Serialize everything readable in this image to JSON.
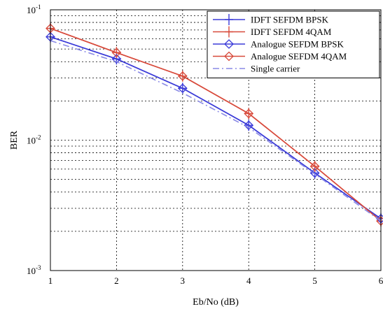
{
  "chart_data": {
    "type": "line",
    "xlabel": "Eb/No (dB)",
    "ylabel": "BER",
    "xlim": [
      1,
      6
    ],
    "ylim": [
      0.001,
      0.1
    ],
    "yscale": "log",
    "grid": true,
    "legend_position": "top-right",
    "x_ticks": [
      "1",
      "2",
      "3",
      "4",
      "5",
      "6"
    ],
    "y_ticks": [
      {
        "value": 0.1,
        "base": "10",
        "exp": "-1"
      },
      {
        "value": 0.01,
        "base": "10",
        "exp": "-2"
      },
      {
        "value": 0.001,
        "base": "10",
        "exp": "-3"
      }
    ],
    "x": [
      1,
      2,
      3,
      4,
      5,
      6
    ],
    "series": [
      {
        "name": "IDFT SEFDM BPSK",
        "color": "#3b3bd8",
        "dash": "solid",
        "marker": "plus",
        "values": [
          0.062,
          0.042,
          0.025,
          0.013,
          0.0056,
          0.0025
        ]
      },
      {
        "name": "IDFT SEFDM 4QAM",
        "color": "#d84a3b",
        "dash": "solid",
        "marker": "plus",
        "values": [
          0.072,
          0.047,
          0.031,
          0.016,
          0.0063,
          0.0024
        ]
      },
      {
        "name": "Analogue SEFDM BPSK",
        "color": "#3b3bd8",
        "dash": "solid",
        "marker": "diamond",
        "values": [
          0.062,
          0.042,
          0.025,
          0.013,
          0.0056,
          0.0025
        ]
      },
      {
        "name": "Analogue SEFDM 4QAM",
        "color": "#d84a3b",
        "dash": "solid",
        "marker": "diamond",
        "values": [
          0.072,
          0.047,
          0.031,
          0.016,
          0.0063,
          0.0024
        ]
      },
      {
        "name": "Single carrier",
        "color": "#8a8ae6",
        "dash": "dashdot",
        "marker": "none",
        "values": [
          0.058,
          0.04,
          0.023,
          0.0125,
          0.0055,
          0.0024
        ]
      }
    ]
  }
}
